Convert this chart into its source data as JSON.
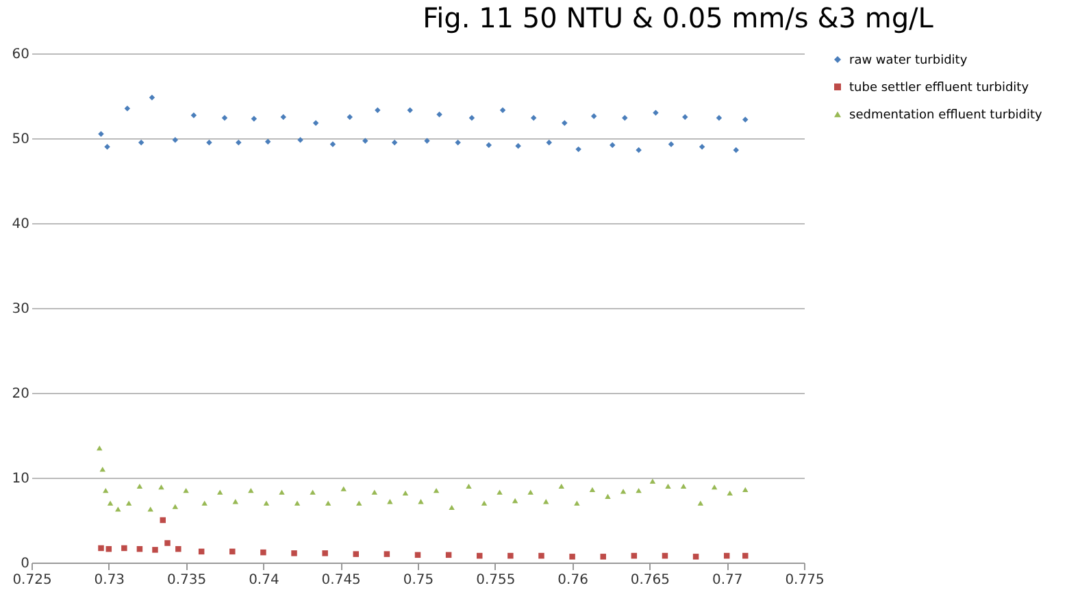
{
  "chart_data": {
    "type": "scatter",
    "title": "Fig. 11 50 NTU & 0.05 mm/s &3 mg/L",
    "xlim": [
      0.725,
      0.775
    ],
    "xticks": [
      0.725,
      0.73,
      0.735,
      0.74,
      0.745,
      0.75,
      0.755,
      0.76,
      0.765,
      0.77,
      0.775
    ],
    "ylim": [
      0,
      60
    ],
    "yticks": [
      0,
      10,
      20,
      30,
      40,
      50,
      60
    ],
    "grid": "y",
    "legend": "right",
    "series": [
      {
        "name": "raw water turbidity",
        "color": "#4a7ebb",
        "marker": "diamond",
        "x": [
          0.7295,
          0.7299,
          0.7312,
          0.7321,
          0.7328,
          0.7343,
          0.7355,
          0.7365,
          0.7375,
          0.7384,
          0.7394,
          0.7403,
          0.7413,
          0.7424,
          0.7434,
          0.7445,
          0.7456,
          0.7466,
          0.7474,
          0.7485,
          0.7495,
          0.7506,
          0.7514,
          0.7526,
          0.7535,
          0.7546,
          0.7555,
          0.7565,
          0.7575,
          0.7585,
          0.7595,
          0.7604,
          0.7614,
          0.7626,
          0.7634,
          0.7643,
          0.7654,
          0.7664,
          0.7673,
          0.7684,
          0.7695,
          0.7706,
          0.7712
        ],
        "values": [
          50.5,
          49.0,
          53.5,
          49.5,
          54.8,
          49.8,
          52.7,
          49.5,
          52.4,
          49.5,
          52.3,
          49.6,
          52.5,
          49.8,
          51.8,
          49.3,
          52.5,
          49.7,
          53.3,
          49.5,
          53.3,
          49.7,
          52.8,
          49.5,
          52.4,
          49.2,
          53.3,
          49.1,
          52.4,
          49.5,
          51.8,
          48.7,
          52.6,
          49.2,
          52.4,
          48.6,
          53.0,
          49.3,
          52.5,
          49.0,
          52.4,
          48.6,
          52.2
        ]
      },
      {
        "name": "tube settler effluent turbidity",
        "color": "#be4b48",
        "marker": "square",
        "x": [
          0.7295,
          0.73,
          0.731,
          0.732,
          0.733,
          0.7335,
          0.7338,
          0.7345,
          0.736,
          0.738,
          0.74,
          0.742,
          0.744,
          0.746,
          0.748,
          0.75,
          0.752,
          0.754,
          0.756,
          0.758,
          0.76,
          0.762,
          0.764,
          0.766,
          0.768,
          0.77,
          0.7712
        ],
        "values": [
          1.7,
          1.6,
          1.7,
          1.6,
          1.5,
          5.0,
          2.3,
          1.6,
          1.3,
          1.3,
          1.2,
          1.1,
          1.1,
          1.0,
          1.0,
          0.9,
          0.9,
          0.8,
          0.8,
          0.8,
          0.7,
          0.7,
          0.8,
          0.8,
          0.7,
          0.8,
          0.8
        ]
      },
      {
        "name": "sedmentation effluent turbidity",
        "color": "#98b954",
        "marker": "triangle",
        "x": [
          0.7294,
          0.7296,
          0.7298,
          0.7301,
          0.7306,
          0.7313,
          0.732,
          0.7327,
          0.7334,
          0.7343,
          0.735,
          0.7362,
          0.7372,
          0.7382,
          0.7392,
          0.7402,
          0.7412,
          0.7422,
          0.7432,
          0.7442,
          0.7452,
          0.7462,
          0.7472,
          0.7482,
          0.7492,
          0.7502,
          0.7512,
          0.7522,
          0.7533,
          0.7543,
          0.7553,
          0.7563,
          0.7573,
          0.7583,
          0.7593,
          0.7603,
          0.7613,
          0.7623,
          0.7633,
          0.7643,
          0.7652,
          0.7662,
          0.7672,
          0.7683,
          0.7692,
          0.7702,
          0.7712
        ],
        "values": [
          13.5,
          11.0,
          8.5,
          7.0,
          6.3,
          7.0,
          9.0,
          6.3,
          8.9,
          6.6,
          8.5,
          7.0,
          8.3,
          7.2,
          8.5,
          7.0,
          8.3,
          7.0,
          8.3,
          7.0,
          8.7,
          7.0,
          8.3,
          7.2,
          8.2,
          7.2,
          8.5,
          6.5,
          9.0,
          7.0,
          8.3,
          7.3,
          8.3,
          7.2,
          9.0,
          7.0,
          8.6,
          7.8,
          8.4,
          8.5,
          9.6,
          9.0,
          9.0,
          7.0,
          8.9,
          8.2,
          8.6
        ]
      }
    ]
  }
}
